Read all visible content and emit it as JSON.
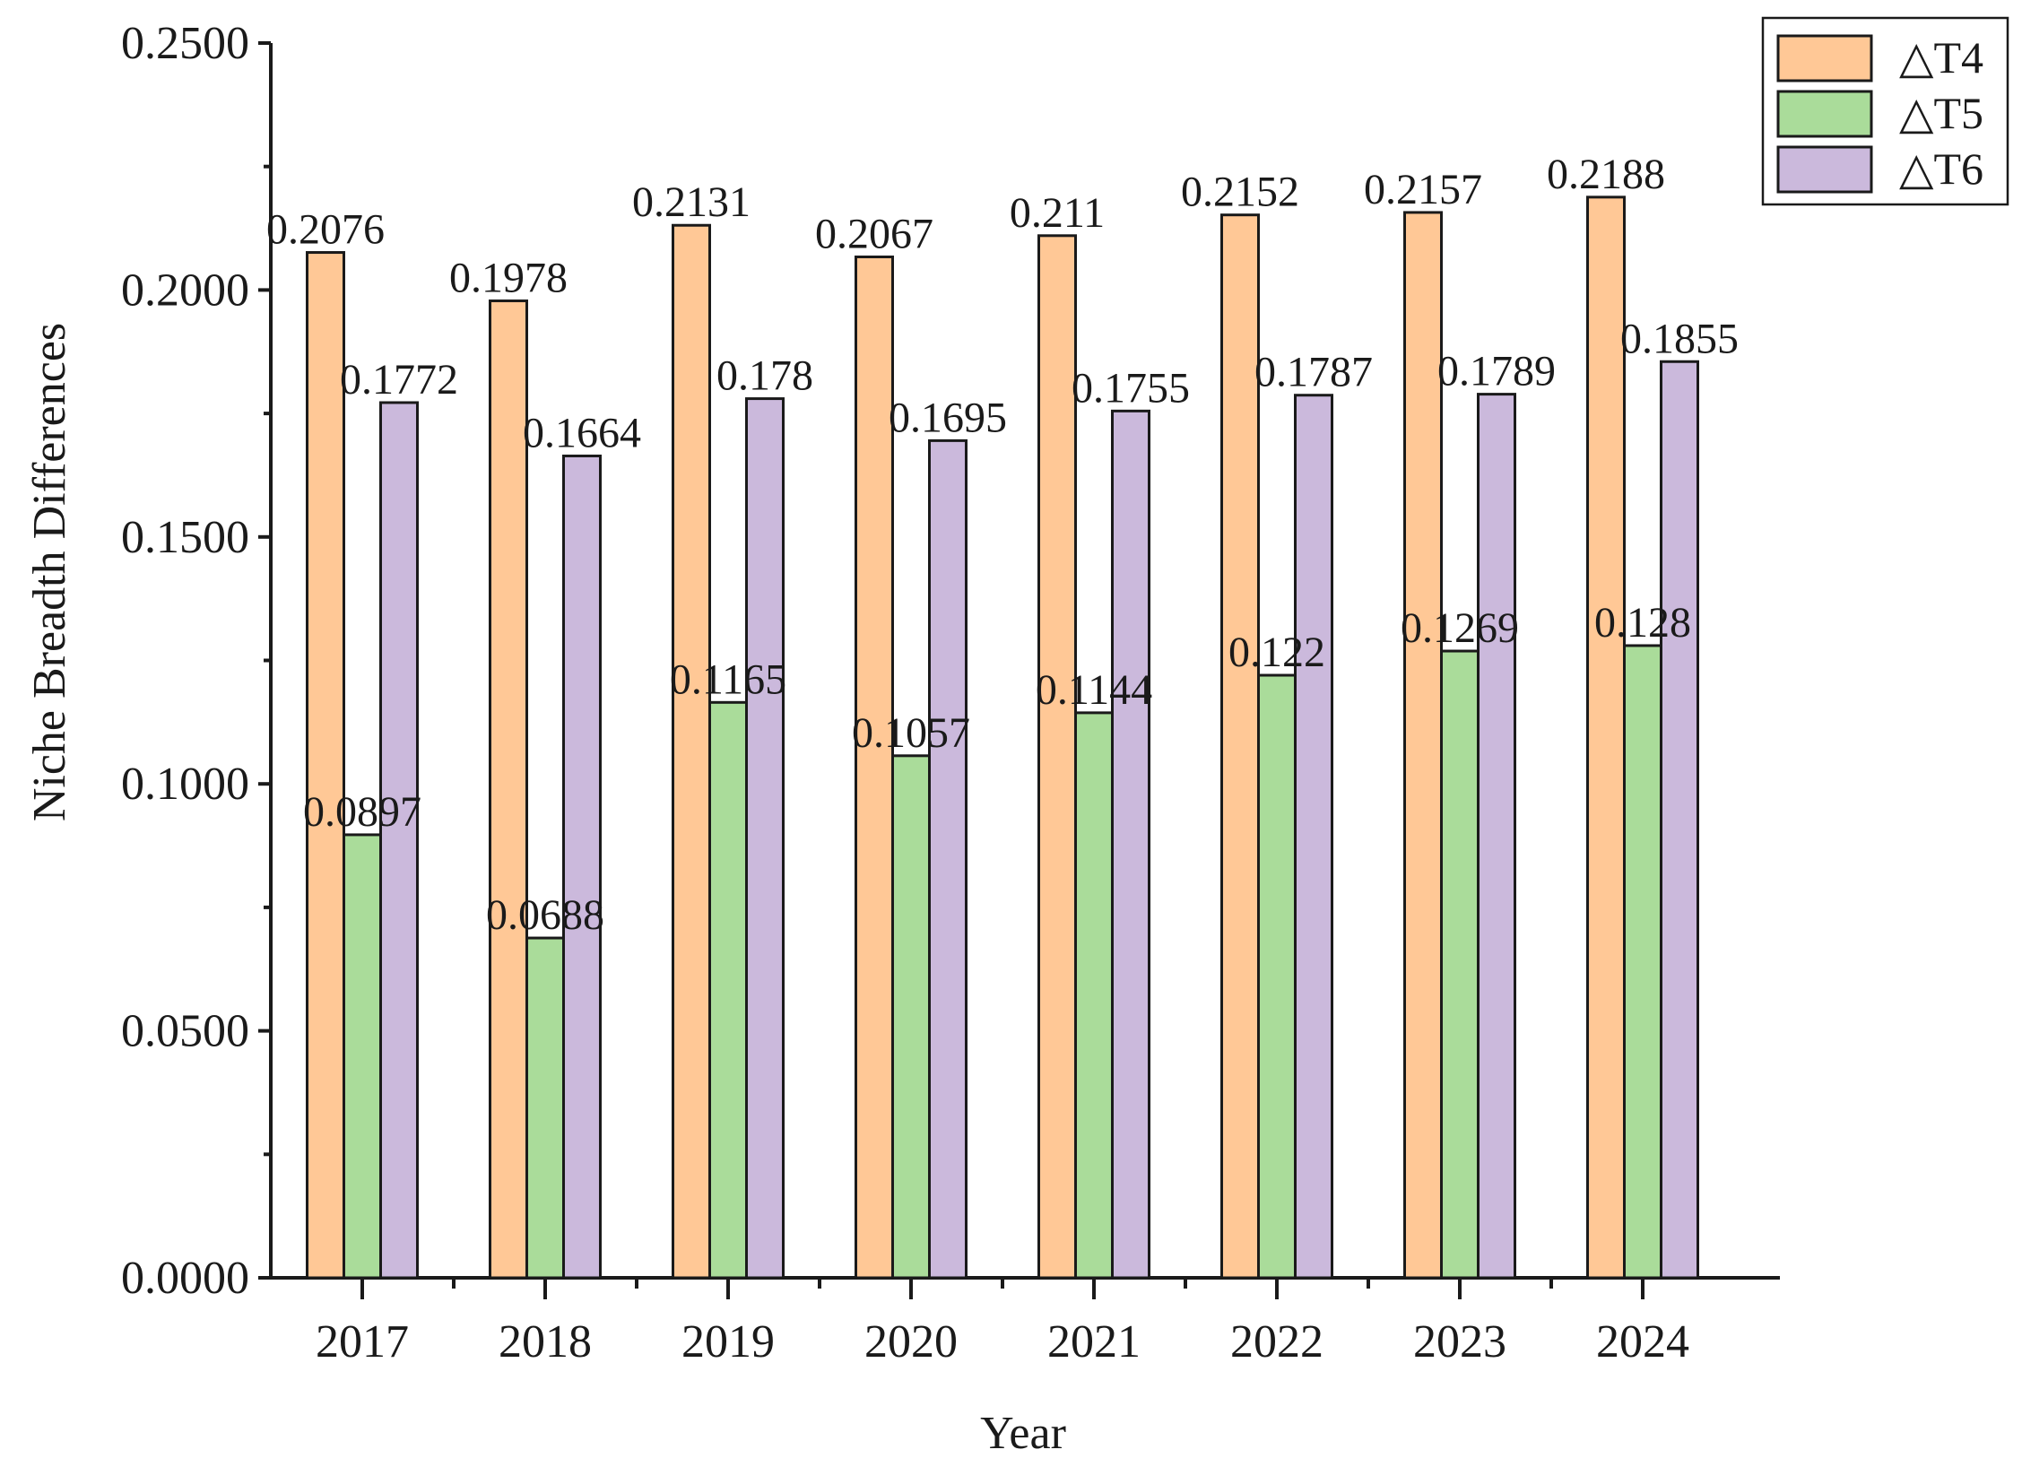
{
  "chart_data": {
    "type": "bar",
    "title": "",
    "xlabel": "Year",
    "ylabel": "Niche Breadth Differences",
    "ylim": [
      0,
      0.25
    ],
    "yticks": [
      "0.0000",
      "0.0500",
      "0.1000",
      "0.1500",
      "0.2000",
      "0.2500"
    ],
    "ytick_values": [
      0,
      0.05,
      0.1,
      0.15,
      0.2,
      0.25
    ],
    "categories": [
      "2017",
      "2018",
      "2019",
      "2020",
      "2021",
      "2022",
      "2023",
      "2024"
    ],
    "legend_position": "top-right",
    "series": [
      {
        "name": "△T4",
        "color": "#ffc896",
        "values": [
          0.2076,
          0.1978,
          0.2131,
          0.2067,
          0.211,
          0.2152,
          0.2157,
          0.2188
        ],
        "labels": [
          "0.2076",
          "0.1978",
          "0.2131",
          "0.2067",
          "0.211",
          "0.2152",
          "0.2157",
          "0.2188"
        ]
      },
      {
        "name": "△T5",
        "color": "#aadc9a",
        "values": [
          0.0897,
          0.0688,
          0.1165,
          0.1057,
          0.1144,
          0.122,
          0.1269,
          0.128
        ],
        "labels": [
          "0.0897",
          "0.0688",
          "0.1165",
          "0.1057",
          "0.1144",
          "0.122",
          "0.1269",
          "0.128"
        ]
      },
      {
        "name": "△T6",
        "color": "#cbb9dc",
        "values": [
          0.1772,
          0.1664,
          0.178,
          0.1695,
          0.1755,
          0.1787,
          0.1789,
          0.1855
        ],
        "labels": [
          "0.1772",
          "0.1664",
          "0.178",
          "0.1695",
          "0.1755",
          "0.1787",
          "0.1789",
          "0.1855"
        ]
      }
    ]
  }
}
